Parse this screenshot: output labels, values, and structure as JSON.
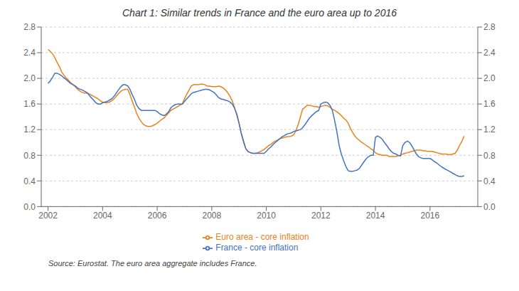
{
  "chart_data": {
    "type": "line",
    "title": "Chart 1: Similar trends in France and the euro area up to 2016",
    "annotations": [
      "Source: Eurostat. The euro area aggregate includes France."
    ],
    "x": [
      2002.0,
      2002.08,
      2002.17,
      2002.25,
      2002.33,
      2002.42,
      2002.5,
      2002.58,
      2002.67,
      2002.75,
      2002.83,
      2002.92,
      2003.0,
      2003.08,
      2003.17,
      2003.25,
      2003.33,
      2003.42,
      2003.5,
      2003.58,
      2003.67,
      2003.75,
      2003.83,
      2003.92,
      2004.0,
      2004.08,
      2004.17,
      2004.25,
      2004.33,
      2004.42,
      2004.5,
      2004.58,
      2004.67,
      2004.75,
      2004.83,
      2004.92,
      2005.0,
      2005.08,
      2005.17,
      2005.25,
      2005.33,
      2005.42,
      2005.5,
      2005.58,
      2005.67,
      2005.75,
      2005.83,
      2005.92,
      2006.0,
      2006.08,
      2006.17,
      2006.25,
      2006.33,
      2006.42,
      2006.5,
      2006.58,
      2006.67,
      2006.75,
      2006.83,
      2006.92,
      2007.0,
      2007.08,
      2007.17,
      2007.25,
      2007.33,
      2007.42,
      2007.5,
      2007.58,
      2007.67,
      2007.75,
      2007.83,
      2007.92,
      2008.0,
      2008.08,
      2008.17,
      2008.25,
      2008.33,
      2008.42,
      2008.5,
      2008.58,
      2008.67,
      2008.75,
      2008.83,
      2008.92,
      2009.0,
      2009.08,
      2009.17,
      2009.25,
      2009.33,
      2009.42,
      2009.5,
      2009.58,
      2009.67,
      2009.75,
      2009.83,
      2009.92,
      2010.0,
      2010.08,
      2010.17,
      2010.25,
      2010.33,
      2010.42,
      2010.5,
      2010.58,
      2010.67,
      2010.75,
      2010.83,
      2010.92,
      2011.0,
      2011.08,
      2011.17,
      2011.25,
      2011.33,
      2011.42,
      2011.5,
      2011.58,
      2011.67,
      2011.75,
      2011.83,
      2011.92,
      2012.0,
      2012.08,
      2012.17,
      2012.25,
      2012.33,
      2012.42,
      2012.5,
      2012.58,
      2012.67,
      2012.75,
      2012.83,
      2012.92,
      2013.0,
      2013.08,
      2013.17,
      2013.25,
      2013.33,
      2013.42,
      2013.5,
      2013.58,
      2013.67,
      2013.75,
      2013.83,
      2013.92,
      2014.0,
      2014.08,
      2014.17,
      2014.25,
      2014.33,
      2014.42,
      2014.5,
      2014.58,
      2014.67,
      2014.75,
      2014.83,
      2014.92,
      2015.0,
      2015.08,
      2015.17,
      2015.25,
      2015.33,
      2015.42,
      2015.5,
      2015.58,
      2015.67,
      2015.75,
      2015.83,
      2015.92,
      2016.0,
      2016.08,
      2016.17,
      2016.25,
      2016.33,
      2016.42,
      2016.5,
      2016.58,
      2016.67,
      2016.75,
      2016.83,
      2016.92,
      2017.0,
      2017.08,
      2017.17,
      2017.25
    ],
    "series": [
      {
        "name": "Euro area - core inflation",
        "color": "#E8821A",
        "values": [
          2.45,
          2.42,
          2.38,
          2.32,
          2.25,
          2.18,
          2.1,
          2.05,
          2.0,
          1.97,
          1.93,
          1.9,
          1.87,
          1.83,
          1.8,
          1.78,
          1.77,
          1.77,
          1.76,
          1.74,
          1.72,
          1.7,
          1.68,
          1.65,
          1.63,
          1.62,
          1.62,
          1.63,
          1.65,
          1.68,
          1.72,
          1.76,
          1.8,
          1.82,
          1.83,
          1.83,
          1.75,
          1.65,
          1.55,
          1.45,
          1.38,
          1.32,
          1.28,
          1.26,
          1.25,
          1.25,
          1.26,
          1.28,
          1.3,
          1.33,
          1.36,
          1.38,
          1.42,
          1.46,
          1.5,
          1.52,
          1.54,
          1.56,
          1.58,
          1.6,
          1.68,
          1.75,
          1.82,
          1.88,
          1.9,
          1.9,
          1.9,
          1.91,
          1.91,
          1.9,
          1.88,
          1.88,
          1.87,
          1.87,
          1.87,
          1.88,
          1.87,
          1.85,
          1.82,
          1.78,
          1.72,
          1.65,
          1.55,
          1.42,
          1.3,
          1.15,
          1.02,
          0.9,
          0.86,
          0.84,
          0.83,
          0.83,
          0.84,
          0.85,
          0.87,
          0.89,
          0.92,
          0.95,
          0.97,
          1.0,
          1.02,
          1.04,
          1.06,
          1.07,
          1.08,
          1.09,
          1.09,
          1.1,
          1.12,
          1.18,
          1.28,
          1.4,
          1.52,
          1.55,
          1.58,
          1.58,
          1.57,
          1.56,
          1.56,
          1.55,
          1.56,
          1.57,
          1.58,
          1.57,
          1.55,
          1.52,
          1.5,
          1.48,
          1.45,
          1.42,
          1.38,
          1.35,
          1.3,
          1.22,
          1.15,
          1.1,
          1.06,
          1.03,
          1.0,
          0.98,
          0.95,
          0.93,
          0.9,
          0.88,
          0.84,
          0.82,
          0.81,
          0.8,
          0.8,
          0.8,
          0.78,
          0.78,
          0.78,
          0.78,
          0.79,
          0.8,
          0.82,
          0.83,
          0.84,
          0.85,
          0.86,
          0.87,
          0.88,
          0.88,
          0.88,
          0.87,
          0.87,
          0.86,
          0.86,
          0.86,
          0.85,
          0.84,
          0.83,
          0.82,
          0.82,
          0.82,
          0.81,
          0.81,
          0.82,
          0.83,
          0.88,
          0.95,
          1.02,
          1.1
        ]
      },
      {
        "name": "France - core inflation",
        "color": "#4472C4",
        "values": [
          1.92,
          1.96,
          2.02,
          2.08,
          2.08,
          2.06,
          2.04,
          2.01,
          1.98,
          1.95,
          1.92,
          1.9,
          1.88,
          1.85,
          1.83,
          1.82,
          1.8,
          1.78,
          1.74,
          1.7,
          1.66,
          1.62,
          1.6,
          1.6,
          1.62,
          1.63,
          1.64,
          1.66,
          1.68,
          1.72,
          1.77,
          1.82,
          1.87,
          1.9,
          1.9,
          1.88,
          1.83,
          1.75,
          1.67,
          1.58,
          1.53,
          1.5,
          1.5,
          1.5,
          1.5,
          1.5,
          1.5,
          1.5,
          1.48,
          1.45,
          1.43,
          1.42,
          1.44,
          1.48,
          1.54,
          1.57,
          1.59,
          1.6,
          1.6,
          1.6,
          1.64,
          1.68,
          1.72,
          1.76,
          1.78,
          1.79,
          1.8,
          1.81,
          1.82,
          1.83,
          1.83,
          1.82,
          1.8,
          1.78,
          1.74,
          1.7,
          1.68,
          1.67,
          1.66,
          1.65,
          1.63,
          1.6,
          1.54,
          1.44,
          1.3,
          1.14,
          1.0,
          0.9,
          0.86,
          0.84,
          0.83,
          0.83,
          0.83,
          0.83,
          0.83,
          0.83,
          0.86,
          0.9,
          0.93,
          0.97,
          1.0,
          1.03,
          1.06,
          1.09,
          1.11,
          1.13,
          1.14,
          1.15,
          1.17,
          1.18,
          1.19,
          1.2,
          1.23,
          1.28,
          1.33,
          1.38,
          1.42,
          1.45,
          1.48,
          1.5,
          1.6,
          1.62,
          1.63,
          1.62,
          1.58,
          1.5,
          1.35,
          1.18,
          0.95,
          0.82,
          0.72,
          0.62,
          0.56,
          0.55,
          0.55,
          0.56,
          0.57,
          0.6,
          0.65,
          0.7,
          0.75,
          0.78,
          0.8,
          0.8,
          1.08,
          1.1,
          1.08,
          1.05,
          1.0,
          0.95,
          0.9,
          0.86,
          0.83,
          0.82,
          0.8,
          0.79,
          0.95,
          1.0,
          1.02,
          1.0,
          0.95,
          0.88,
          0.82,
          0.78,
          0.76,
          0.75,
          0.75,
          0.75,
          0.75,
          0.73,
          0.7,
          0.68,
          0.65,
          0.62,
          0.6,
          0.58,
          0.56,
          0.54,
          0.52,
          0.5,
          0.48,
          0.47,
          0.47,
          0.48
        ]
      }
    ],
    "xlim": [
      2001.75,
      2017.75
    ],
    "xticks": [
      2002,
      2004,
      2006,
      2008,
      2010,
      2012,
      2014,
      2016
    ],
    "ylim": [
      0.0,
      2.8
    ],
    "yticks": [
      {
        "value": 0.0,
        "label": "0.0"
      },
      0.4,
      0.8,
      1.2,
      1.6,
      {
        "value": 2.0,
        "label": "2.0"
      },
      2.4,
      2.8
    ],
    "y2lim": [
      0.0,
      2.8
    ],
    "y2ticks": [
      {
        "value": 0.0,
        "label": "0.0"
      },
      0.4,
      0.8,
      1.2,
      1.6,
      {
        "value": 2.0,
        "label": "2.0"
      },
      2.4,
      2.8
    ],
    "grid": true,
    "legend": "bottom"
  }
}
